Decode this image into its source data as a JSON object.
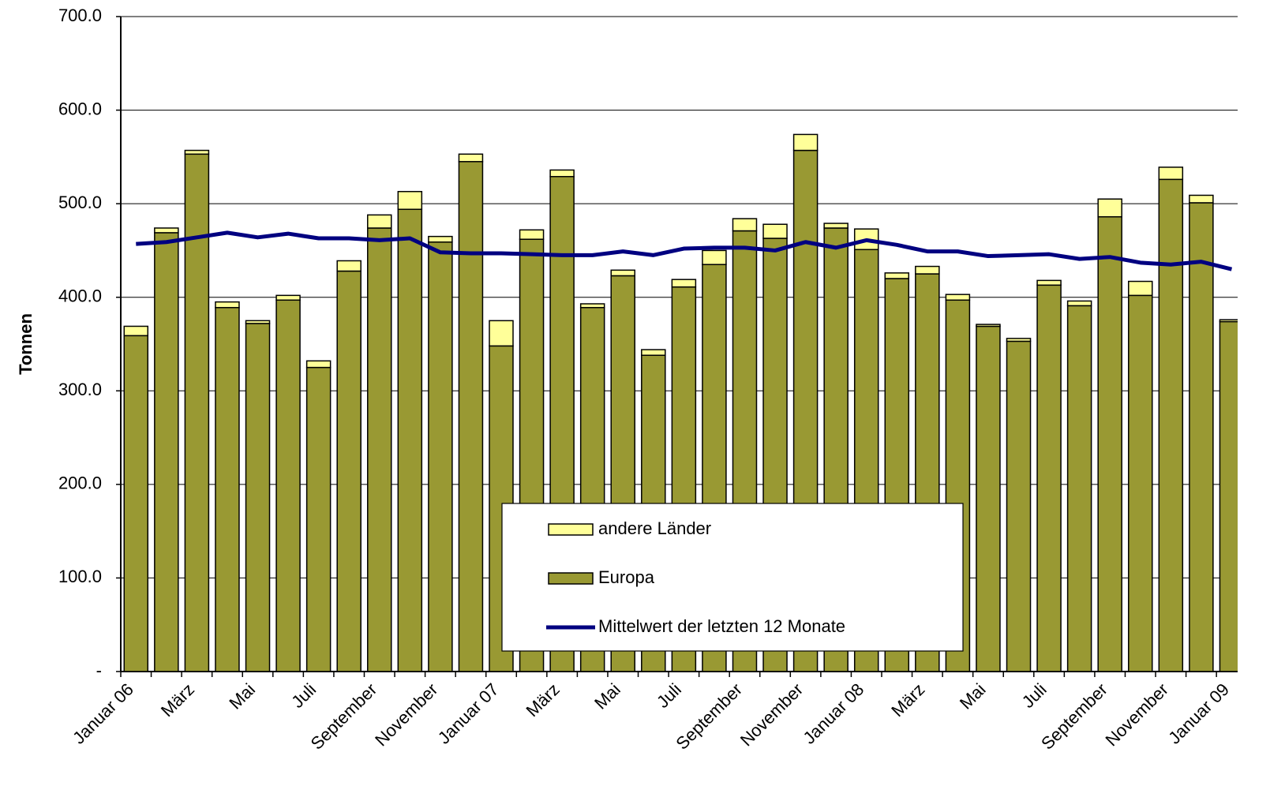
{
  "chart_data": {
    "type": "bar",
    "y_label": "Tonnen",
    "categories": [
      "Januar 06",
      null,
      "März",
      null,
      "Mai",
      null,
      "Juli",
      null,
      "September",
      null,
      "November",
      null,
      "Januar 07",
      null,
      "März",
      null,
      "Mai",
      null,
      "Juli",
      null,
      "September",
      null,
      "November",
      null,
      "Januar 08",
      null,
      "März",
      null,
      "Mai",
      null,
      "Juli",
      null,
      "September",
      null,
      "November",
      null,
      "Januar 09"
    ],
    "series": [
      {
        "name": "Europa",
        "color": "#999933",
        "values": [
          359,
          469,
          553,
          389,
          372,
          397,
          325,
          428,
          474,
          494,
          459,
          545,
          348,
          462,
          529,
          389,
          423,
          338,
          411,
          435,
          471,
          463,
          557,
          474,
          451,
          420,
          425,
          397,
          369,
          353,
          413,
          391,
          486,
          402,
          526,
          501,
          374
        ]
      },
      {
        "name": "andere Länder",
        "color": "#ffff99",
        "values": [
          10,
          5,
          4,
          6,
          3,
          5,
          7,
          11,
          14,
          19,
          6,
          8,
          27,
          10,
          7,
          4,
          6,
          6,
          8,
          15,
          13,
          15,
          17,
          5,
          22,
          6,
          8,
          6,
          2,
          3,
          5,
          5,
          19,
          15,
          13,
          8,
          2
        ]
      },
      {
        "name": "Mittelwert der letzten 12 Monate",
        "color": "#000080",
        "type": "line",
        "values": [
          457,
          459,
          464,
          469,
          464,
          468,
          463,
          463,
          461,
          463,
          448,
          447,
          447,
          446,
          445,
          445,
          449,
          445,
          452,
          453,
          453,
          450,
          459,
          453,
          461,
          456,
          449,
          449,
          444,
          445,
          446,
          441,
          443,
          437,
          435,
          438,
          430
        ]
      }
    ],
    "ylim": [
      0,
      700
    ],
    "yticks": [
      {
        "value": 0,
        "label": "-"
      },
      {
        "value": 100,
        "label": "100.0"
      },
      {
        "value": 200,
        "label": "200.0"
      },
      {
        "value": 300,
        "label": "300.0"
      },
      {
        "value": 400,
        "label": "400.0"
      },
      {
        "value": 500,
        "label": "500.0"
      },
      {
        "value": 600,
        "label": "600.0"
      },
      {
        "value": 700,
        "label": "700.0"
      }
    ],
    "grid": true
  }
}
